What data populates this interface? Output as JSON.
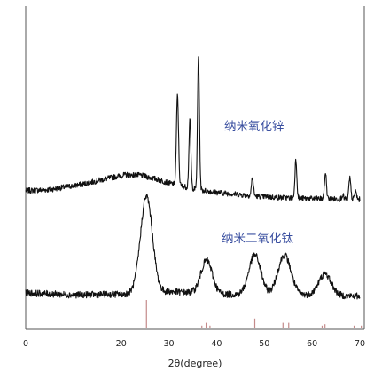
{
  "chart_data": {
    "type": "line",
    "title": "",
    "xlabel": "2θ(degree)",
    "ylabel": "",
    "xlim": [
      0,
      70
    ],
    "x_ticks": [
      0,
      20,
      30,
      40,
      50,
      60,
      70
    ],
    "grid": false,
    "series_label_color": "#3a4fa0",
    "reference_line_color": "#c48a8a",
    "series": [
      {
        "name": "纳米氧化锌",
        "color": "#111111",
        "baseline_points": [
          [
            0,
            0.18
          ],
          [
            5,
            0.2
          ],
          [
            12,
            0.3
          ],
          [
            18,
            0.42
          ],
          [
            21,
            0.47
          ],
          [
            24,
            0.46
          ],
          [
            27,
            0.4
          ],
          [
            30,
            0.32
          ],
          [
            33,
            0.26
          ],
          [
            36,
            0.2
          ],
          [
            40,
            0.15
          ],
          [
            46,
            0.1
          ],
          [
            52,
            0.06
          ],
          [
            58,
            0.04
          ],
          [
            64,
            0.03
          ],
          [
            70,
            0.02
          ]
        ],
        "peaks": [
          {
            "x": 31.8,
            "height": 1.62,
            "width": 0.22
          },
          {
            "x": 34.4,
            "height": 1.22,
            "width": 0.2
          },
          {
            "x": 36.2,
            "height": 2.42,
            "width": 0.2
          },
          {
            "x": 47.5,
            "height": 0.33,
            "width": 0.2
          },
          {
            "x": 56.6,
            "height": 0.7,
            "width": 0.2
          },
          {
            "x": 62.8,
            "height": 0.48,
            "width": 0.2
          },
          {
            "x": 66.4,
            "height": 0.08,
            "width": 0.2
          },
          {
            "x": 67.9,
            "height": 0.38,
            "width": 0.2
          },
          {
            "x": 69.1,
            "height": 0.15,
            "width": 0.2
          }
        ],
        "noise": 0.05
      },
      {
        "name": "纳米二氧化钛",
        "color": "#111111",
        "baseline_points": [
          [
            0,
            0.08
          ],
          [
            10,
            0.05
          ],
          [
            20,
            0.06
          ],
          [
            30,
            0.1
          ],
          [
            40,
            0.06
          ],
          [
            50,
            0.05
          ],
          [
            60,
            0.05
          ],
          [
            70,
            0.03
          ]
        ],
        "peaks": [
          {
            "x": 25.3,
            "height": 1.45,
            "width": 1.25
          },
          {
            "x": 37.9,
            "height": 0.5,
            "width": 1.2
          },
          {
            "x": 48.0,
            "height": 0.6,
            "width": 1.25
          },
          {
            "x": 54.2,
            "height": 0.6,
            "width": 1.35
          },
          {
            "x": 62.7,
            "height": 0.32,
            "width": 1.3
          }
        ],
        "noise": 0.05
      }
    ],
    "reference_lines": [
      {
        "x": 25.3,
        "height": 1.0
      },
      {
        "x": 36.9,
        "height": 0.1
      },
      {
        "x": 37.8,
        "height": 0.2
      },
      {
        "x": 38.6,
        "height": 0.1
      },
      {
        "x": 48.0,
        "height": 0.35
      },
      {
        "x": 53.9,
        "height": 0.2
      },
      {
        "x": 55.1,
        "height": 0.2
      },
      {
        "x": 62.1,
        "height": 0.1
      },
      {
        "x": 62.7,
        "height": 0.15
      },
      {
        "x": 68.8,
        "height": 0.1
      },
      {
        "x": 70.3,
        "height": 0.1
      }
    ]
  }
}
